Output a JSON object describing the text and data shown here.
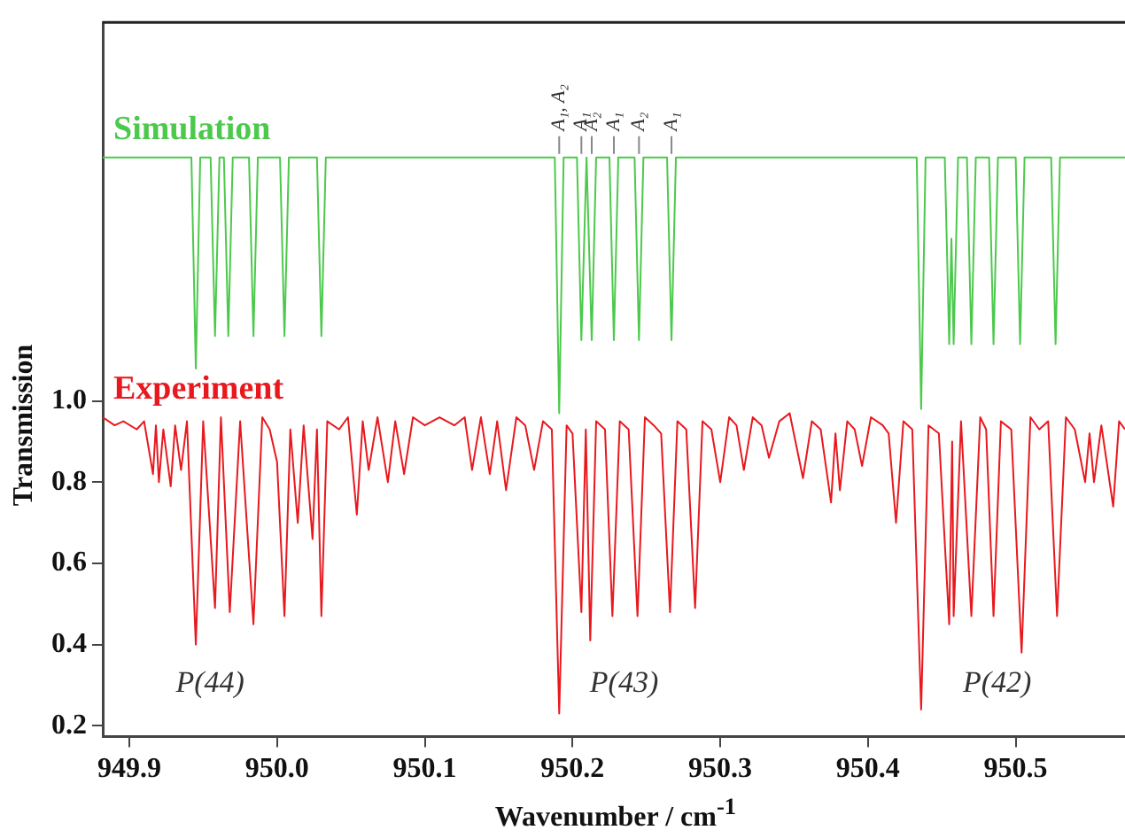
{
  "chart_data": {
    "type": "line",
    "xlabel": "Wavenumber / cm$^{-1}$",
    "ylabel": "Transmission",
    "xlim": [
      949.882,
      950.574
    ],
    "ylim": [
      0.173,
      1.933
    ],
    "xticks": [
      {
        "value": 949.9,
        "label": "949.9"
      },
      {
        "value": 950.0,
        "label": "950.0"
      },
      {
        "value": 950.1,
        "label": "950.1"
      },
      {
        "value": 950.2,
        "label": "950.2"
      },
      {
        "value": 950.3,
        "label": "950.3"
      },
      {
        "value": 950.4,
        "label": "950.4"
      },
      {
        "value": 950.5,
        "label": "950.5"
      }
    ],
    "yticks": [
      0.2,
      0.4,
      0.6,
      0.8,
      {
        "value": 1.0,
        "label": "1.0"
      }
    ],
    "marker": "none",
    "line_style": "solid",
    "series": [
      {
        "name": "Simulation",
        "color": "#4cc94c",
        "x": [
          949.882,
          949.942,
          949.945,
          949.948,
          949.955,
          949.958,
          949.961,
          949.964,
          949.967,
          949.97,
          949.981,
          949.984,
          949.987,
          950.002,
          950.005,
          950.008,
          950.027,
          950.03,
          950.033,
          950.188,
          950.191,
          950.194,
          950.203,
          950.206,
          950.2095,
          950.213,
          950.216,
          950.225,
          950.228,
          950.231,
          950.242,
          950.245,
          950.248,
          950.264,
          950.267,
          950.27,
          950.433,
          950.436,
          950.439,
          950.452,
          950.455,
          950.4565,
          950.458,
          950.461,
          950.467,
          950.47,
          950.473,
          950.482,
          950.485,
          950.488,
          950.5,
          950.503,
          950.506,
          950.524,
          950.527,
          950.53,
          950.574
        ],
        "values": [
          1.6,
          1.6,
          1.08,
          1.6,
          1.6,
          1.16,
          1.6,
          1.6,
          1.16,
          1.6,
          1.6,
          1.16,
          1.6,
          1.6,
          1.16,
          1.6,
          1.6,
          1.16,
          1.6,
          1.6,
          0.97,
          1.6,
          1.6,
          1.15,
          1.6,
          1.15,
          1.6,
          1.6,
          1.15,
          1.6,
          1.6,
          1.15,
          1.6,
          1.6,
          1.15,
          1.6,
          1.6,
          0.98,
          1.6,
          1.6,
          1.14,
          1.4,
          1.14,
          1.6,
          1.6,
          1.14,
          1.6,
          1.6,
          1.14,
          1.6,
          1.6,
          1.14,
          1.6,
          1.6,
          1.14,
          1.6,
          1.6
        ]
      },
      {
        "name": "Experiment",
        "color": "#e8191e",
        "x": [
          949.882,
          949.89,
          949.896,
          949.905,
          949.91,
          949.916,
          949.918,
          949.92,
          949.923,
          949.928,
          949.931,
          949.935,
          949.939,
          949.945,
          949.95,
          949.958,
          949.962,
          949.968,
          949.975,
          949.984,
          949.99,
          949.995,
          950.0,
          950.005,
          950.009,
          950.014,
          950.018,
          950.024,
          950.027,
          950.03,
          950.034,
          950.042,
          950.048,
          950.054,
          950.058,
          950.062,
          950.068,
          950.075,
          950.08,
          950.086,
          950.092,
          950.1,
          950.11,
          950.12,
          950.127,
          950.132,
          950.138,
          950.144,
          950.149,
          950.155,
          950.162,
          950.168,
          950.174,
          950.18,
          950.186,
          950.191,
          950.196,
          950.2,
          950.206,
          950.209,
          950.212,
          950.216,
          950.222,
          950.227,
          950.232,
          950.238,
          950.244,
          950.249,
          950.255,
          950.26,
          950.266,
          950.271,
          950.277,
          950.283,
          950.288,
          950.294,
          950.3,
          950.306,
          950.311,
          950.316,
          950.322,
          950.328,
          950.333,
          950.34,
          950.347,
          950.356,
          950.362,
          950.368,
          950.375,
          950.378,
          950.381,
          950.386,
          950.391,
          950.396,
          950.402,
          950.41,
          950.414,
          950.419,
          950.424,
          950.43,
          950.436,
          950.441,
          950.448,
          950.455,
          950.457,
          950.458,
          950.463,
          950.47,
          950.476,
          950.48,
          950.485,
          950.49,
          950.497,
          950.504,
          950.51,
          950.516,
          950.522,
          950.528,
          950.534,
          950.54,
          950.547,
          950.55,
          950.553,
          950.558,
          950.566,
          950.57,
          950.574
        ],
        "values": [
          0.96,
          0.94,
          0.95,
          0.93,
          0.95,
          0.82,
          0.94,
          0.8,
          0.93,
          0.79,
          0.94,
          0.83,
          0.95,
          0.4,
          0.95,
          0.49,
          0.96,
          0.48,
          0.95,
          0.45,
          0.96,
          0.93,
          0.85,
          0.47,
          0.93,
          0.7,
          0.94,
          0.66,
          0.93,
          0.47,
          0.95,
          0.93,
          0.96,
          0.72,
          0.95,
          0.83,
          0.96,
          0.8,
          0.95,
          0.82,
          0.96,
          0.94,
          0.96,
          0.94,
          0.96,
          0.83,
          0.96,
          0.82,
          0.95,
          0.78,
          0.96,
          0.94,
          0.83,
          0.95,
          0.93,
          0.23,
          0.94,
          0.92,
          0.48,
          0.93,
          0.41,
          0.95,
          0.93,
          0.47,
          0.95,
          0.93,
          0.47,
          0.96,
          0.94,
          0.92,
          0.48,
          0.95,
          0.93,
          0.49,
          0.95,
          0.93,
          0.8,
          0.96,
          0.94,
          0.83,
          0.96,
          0.94,
          0.86,
          0.95,
          0.97,
          0.81,
          0.95,
          0.93,
          0.75,
          0.92,
          0.78,
          0.95,
          0.93,
          0.84,
          0.96,
          0.94,
          0.92,
          0.7,
          0.95,
          0.93,
          0.24,
          0.94,
          0.92,
          0.45,
          0.9,
          0.47,
          0.95,
          0.47,
          0.96,
          0.93,
          0.47,
          0.95,
          0.93,
          0.38,
          0.96,
          0.93,
          0.95,
          0.47,
          0.96,
          0.93,
          0.8,
          0.92,
          0.8,
          0.94,
          0.74,
          0.95,
          0.93
        ]
      }
    ],
    "annotations": [
      "P(44)",
      "P(43)",
      "P(42)",
      {
        "text": "A₁, A₂",
        "x": 950.191,
        "y": 1.6
      },
      {
        "text": "A₁",
        "x": 950.206,
        "y": 1.6
      },
      {
        "text": "A₂",
        "x": 950.213,
        "y": 1.6
      },
      {
        "text": "A₁",
        "x": 950.228,
        "y": 1.6
      },
      {
        "text": "A₂",
        "x": 950.245,
        "y": 1.6
      },
      {
        "text": "A₁",
        "x": 950.267,
        "y": 1.6
      }
    ]
  }
}
